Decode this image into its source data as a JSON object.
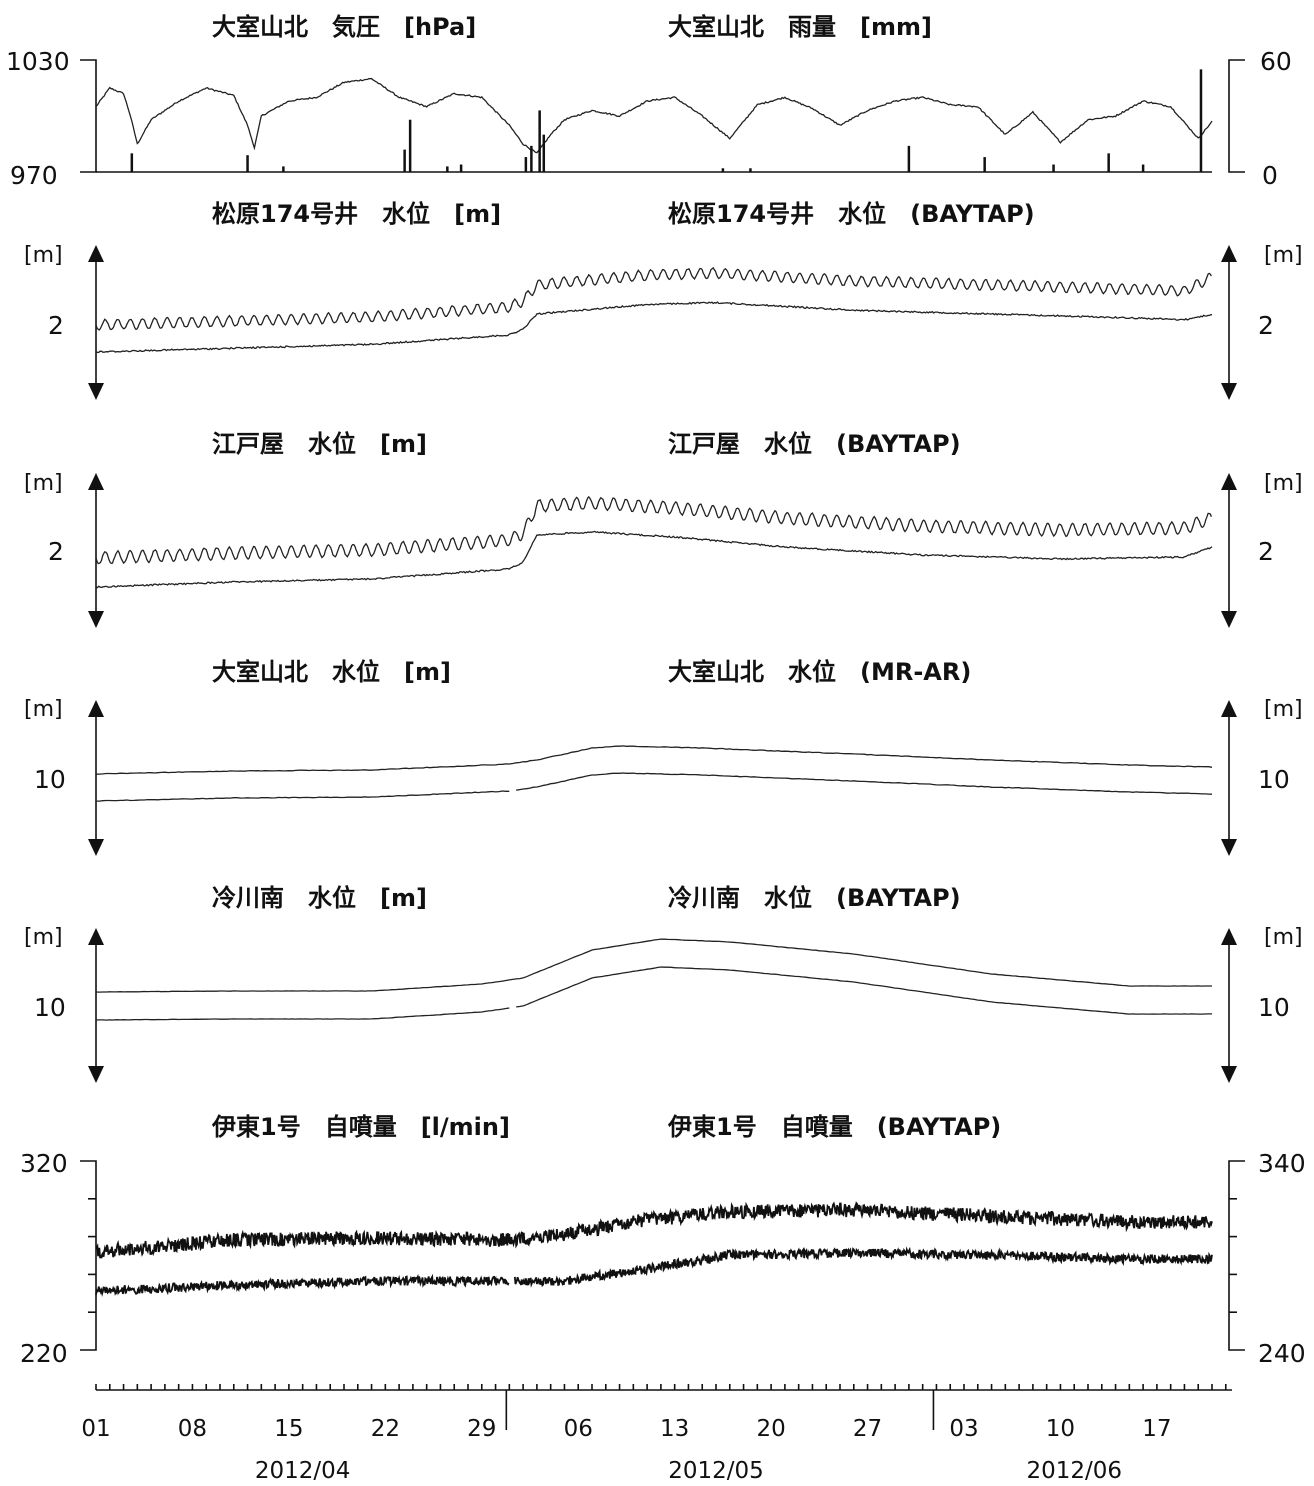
{
  "chart_data": [
    {
      "type": "line",
      "title_left": "大室山北　気圧　[hPa]",
      "title_right": "大室山北　雨量　[mm]",
      "left_ticks": [
        "1030",
        "970"
      ],
      "right_ticks": [
        "60",
        "0"
      ],
      "left_ylim": [
        970,
        1030
      ],
      "right_ylim": [
        0,
        60
      ],
      "series": [
        {
          "x": [
            0,
            1,
            2,
            2.5,
            3,
            4,
            5,
            6,
            8,
            10,
            11,
            11.5,
            12,
            14,
            16,
            18,
            20,
            22,
            24,
            26,
            28,
            30,
            31,
            32,
            33,
            34,
            36,
            38,
            40,
            42,
            44,
            46,
            48,
            50,
            52,
            54,
            56,
            58,
            60,
            62,
            64,
            66,
            68,
            70,
            72,
            74,
            76,
            78,
            80,
            81,
            82
          ],
          "values": [
            1005,
            1015,
            1012,
            1000,
            985,
            998,
            1003,
            1008,
            1015,
            1011,
            995,
            983,
            1000,
            1008,
            1010,
            1018,
            1020,
            1010,
            1005,
            1012,
            1010,
            995,
            985,
            980,
            990,
            998,
            1003,
            1000,
            1008,
            1010,
            1000,
            988,
            1006,
            1010,
            1004,
            995,
            1003,
            1008,
            1010,
            1006,
            1005,
            990,
            1002,
            986,
            998,
            1000,
            1008,
            1005,
            988,
            997,
            1002
          ]
        }
      ],
      "bars": {
        "x": [
          2.6,
          11,
          13.6,
          22.4,
          22.8,
          25.5,
          26.5,
          31.2,
          31.6,
          32.2,
          32.5,
          45.5,
          47.5,
          59,
          64.5,
          69.5,
          73.5,
          76,
          80.2
        ],
        "values": [
          10,
          9,
          3,
          12,
          28,
          3,
          4,
          8,
          14,
          33,
          20,
          2,
          2,
          14,
          8,
          4,
          10,
          4,
          55
        ]
      }
    },
    {
      "type": "line",
      "title_left": "松原174号井　水位　[m]",
      "title_right": "松原174号井　水位　(BAYTAP)",
      "left_unit": "[m]",
      "right_unit": "[m]",
      "left_tick": "2",
      "right_tick": "2"
    },
    {
      "type": "line",
      "title_left": "江戸屋　水位　[m]",
      "title_right": "江戸屋　水位　(BAYTAP)",
      "left_unit": "[m]",
      "right_unit": "[m]",
      "left_tick": "2",
      "right_tick": "2"
    },
    {
      "type": "line",
      "title_left": "大室山北　水位　[m]",
      "title_right": "大室山北　水位　(MR-AR)",
      "left_unit": "[m]",
      "right_unit": "[m]",
      "left_tick": "10",
      "right_tick": "10"
    },
    {
      "type": "line",
      "title_left": "冷川南　水位　[m]",
      "title_right": "冷川南　水位　(BAYTAP)",
      "left_unit": "[m]",
      "right_unit": "[m]",
      "left_tick": "10",
      "right_tick": "10"
    },
    {
      "type": "line",
      "title_left": "伊東1号　自噴量　[l/min]",
      "title_right": "伊東1号　自噴量　(BAYTAP)",
      "left_ticks": [
        "320",
        "220"
      ],
      "right_ticks": [
        "340",
        "240"
      ],
      "left_ylim": [
        220,
        320
      ],
      "right_ylim": [
        240,
        340
      ]
    }
  ],
  "x_axis": {
    "range_days": [
      0,
      81
    ],
    "date_labels": [
      {
        "day": 0,
        "label": "01"
      },
      {
        "day": 7,
        "label": "08"
      },
      {
        "day": 14,
        "label": "15"
      },
      {
        "day": 21,
        "label": "22"
      },
      {
        "day": 28,
        "label": "29"
      },
      {
        "day": 35,
        "label": "06"
      },
      {
        "day": 42,
        "label": "13"
      },
      {
        "day": 49,
        "label": "20"
      },
      {
        "day": 56,
        "label": "27"
      },
      {
        "day": 63,
        "label": "03"
      },
      {
        "day": 70,
        "label": "10"
      },
      {
        "day": 77,
        "label": "17"
      }
    ],
    "month_separators": [
      30,
      61
    ],
    "months": [
      {
        "label": "2012/04",
        "center_day": 15
      },
      {
        "label": "2012/05",
        "center_day": 45
      },
      {
        "label": "2012/06",
        "center_day": 71
      }
    ]
  }
}
